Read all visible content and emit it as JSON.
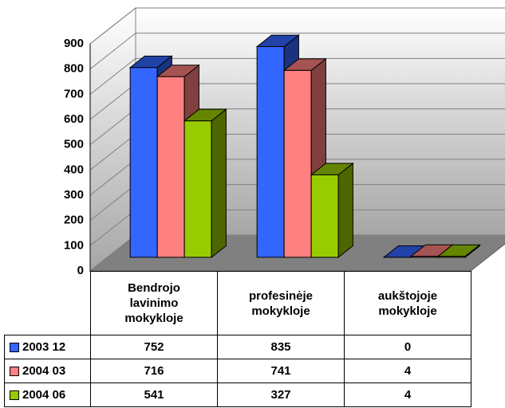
{
  "chart_data": {
    "type": "bar3d",
    "categories": [
      "Bendrojo lavinimo mokykloje",
      "profesinėje mokykloje",
      "aukštojoje mokykloje"
    ],
    "series": [
      {
        "name": "2003 12",
        "color": "#3366ff",
        "values": [
          752,
          835,
          0
        ]
      },
      {
        "name": "2004 03",
        "color": "#ff8080",
        "values": [
          716,
          741,
          4
        ]
      },
      {
        "name": "2004 06",
        "color": "#99cc00",
        "values": [
          541,
          327,
          4
        ]
      }
    ],
    "ylim": [
      0,
      900
    ],
    "yticks": [
      0,
      100,
      200,
      300,
      400,
      500,
      600,
      700,
      800,
      900
    ],
    "grid": true
  }
}
